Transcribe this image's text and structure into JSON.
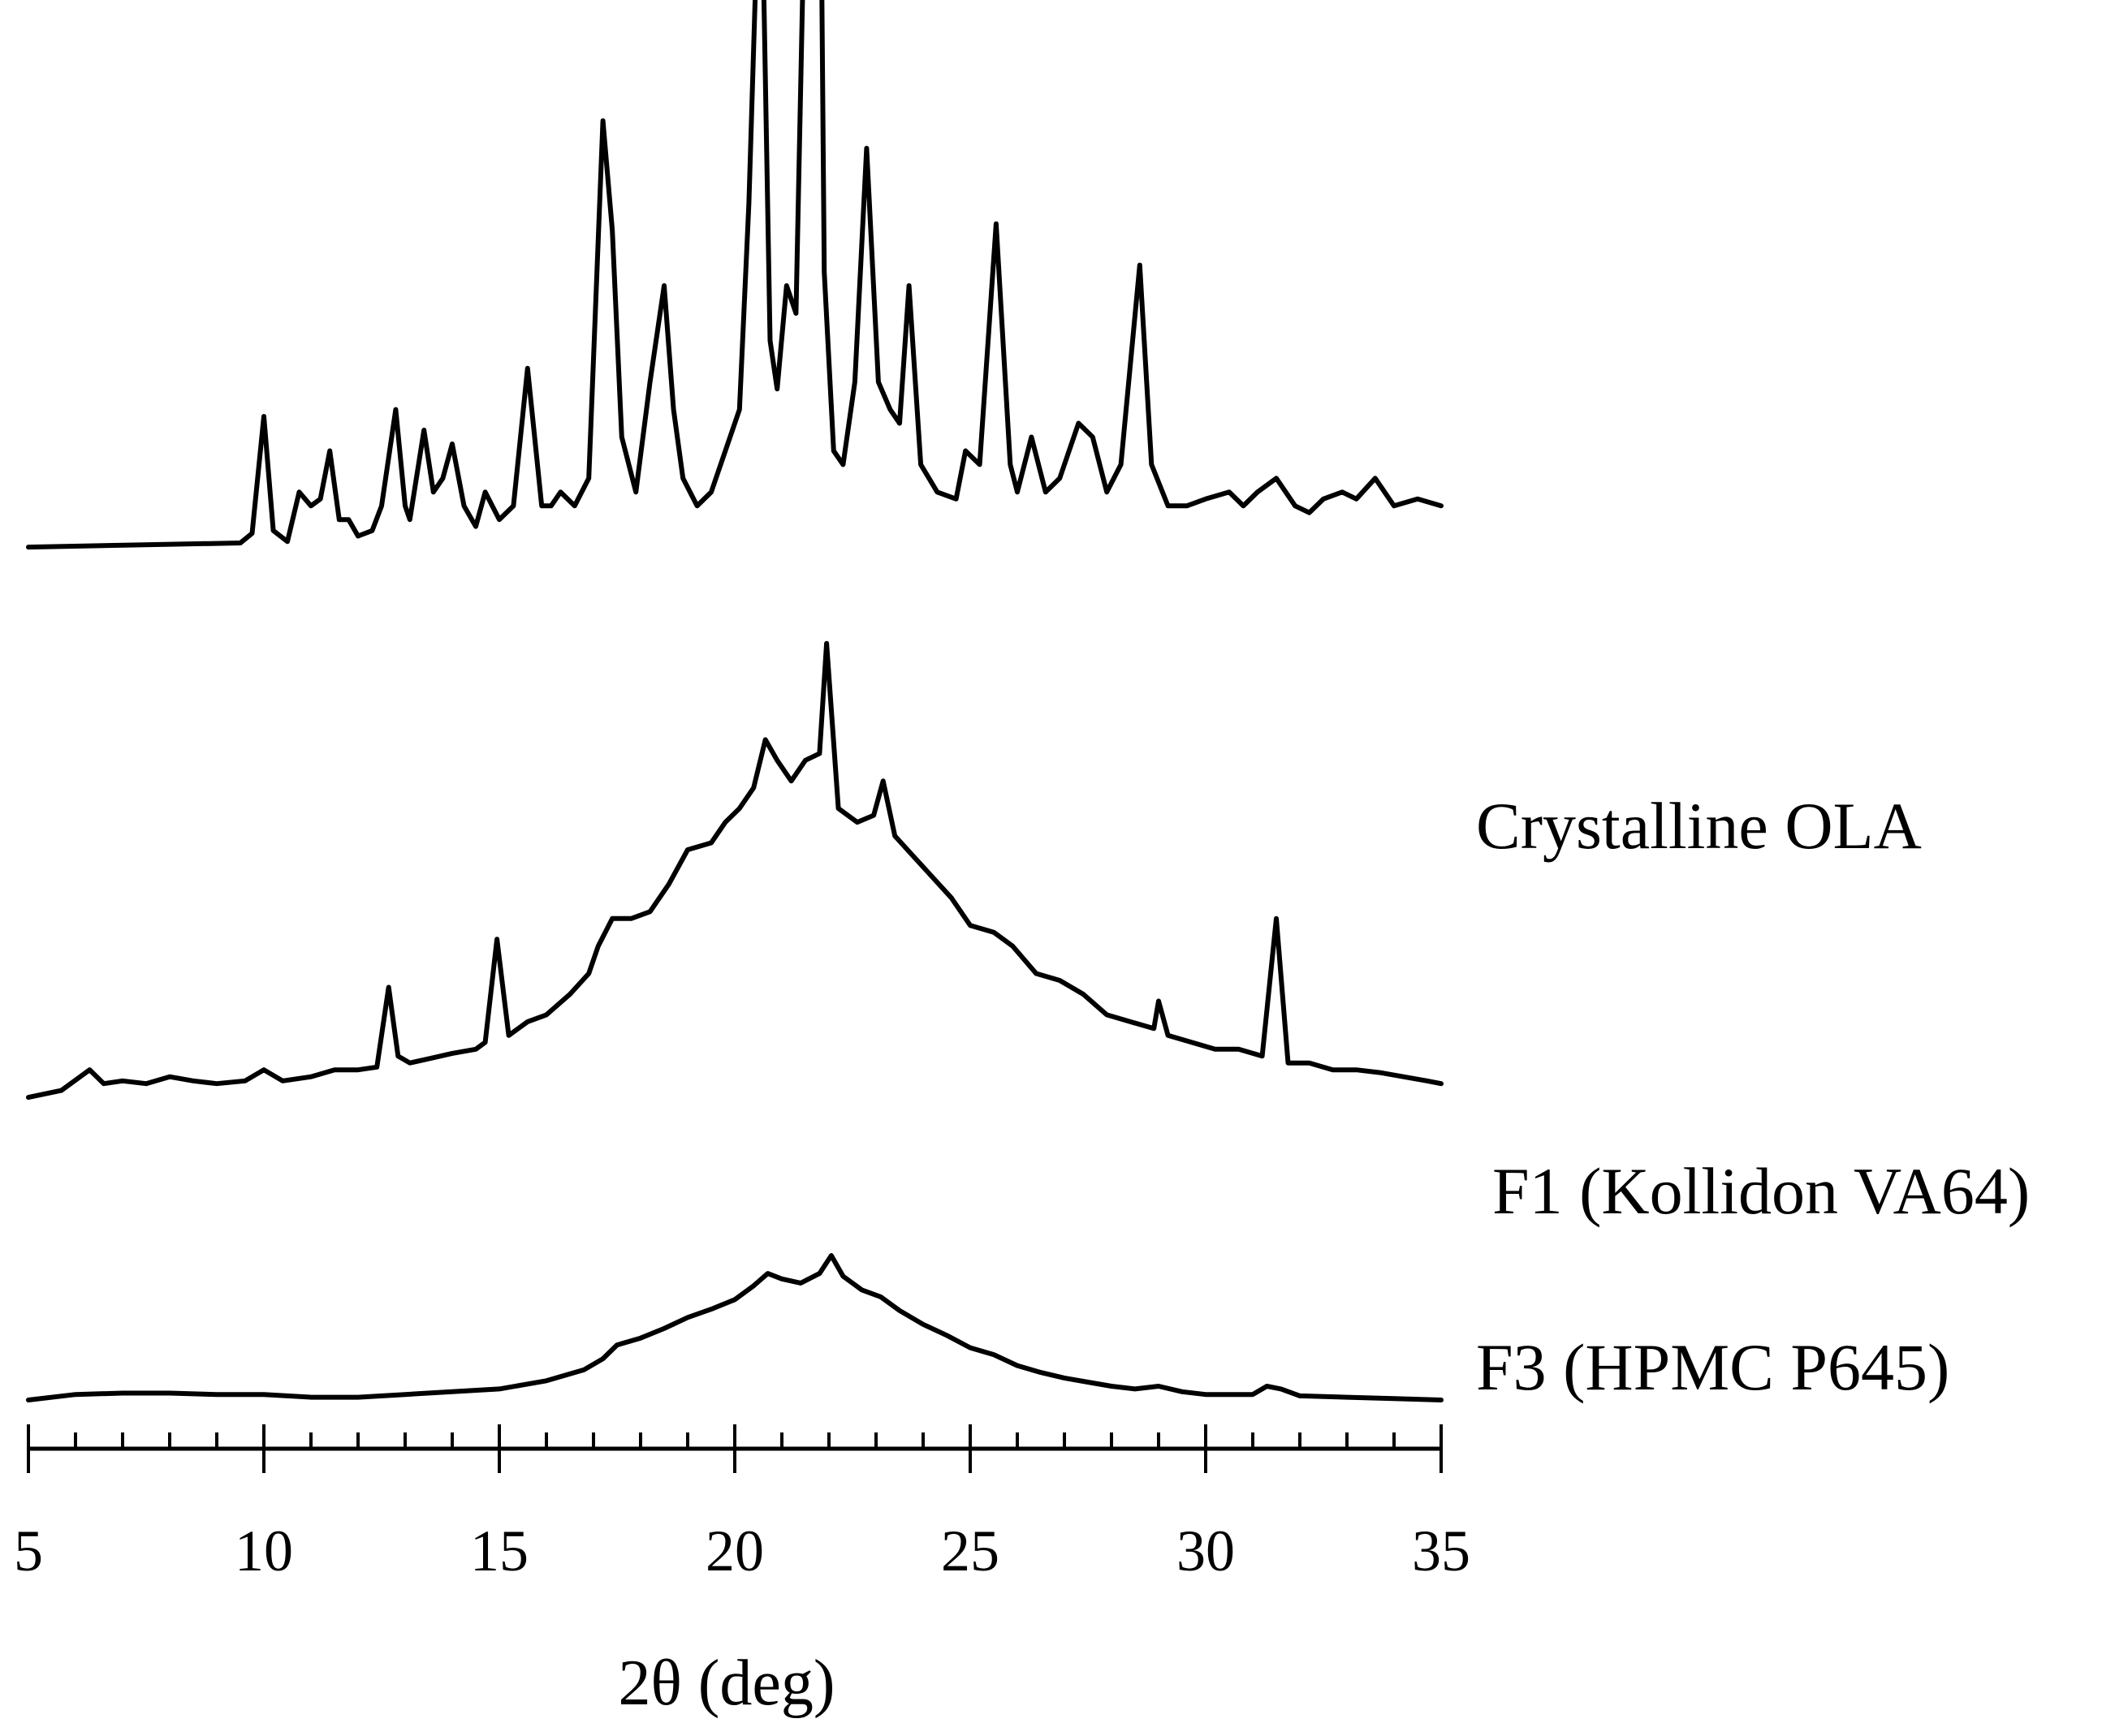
{
  "chart_data": {
    "type": "line",
    "xlabel": "2θ (deg)",
    "ylabel": "",
    "xlim": [
      5,
      35
    ],
    "x_major_ticks": [
      5,
      10,
      15,
      20,
      25,
      30,
      35
    ],
    "x_tick_labels": [
      "5",
      "10",
      "15",
      "20",
      "25",
      "30",
      "35"
    ],
    "x_minor_step": 1,
    "grid": false,
    "y_axis_shown": false,
    "stacked_offset": true,
    "colors": {
      "line": "#000000",
      "background": "#ffffff"
    },
    "series": [
      {
        "name": "Crystalline OLA",
        "offset": 0.62,
        "points": [
          [
            5,
            0
          ],
          [
            9.5,
            0.003
          ],
          [
            9.75,
            0.01
          ],
          [
            10.0,
            0.095
          ],
          [
            10.2,
            0.012
          ],
          [
            10.5,
            0.004
          ],
          [
            10.75,
            0.04
          ],
          [
            11.0,
            0.03
          ],
          [
            11.2,
            0.035
          ],
          [
            11.4,
            0.07
          ],
          [
            11.6,
            0.02
          ],
          [
            11.8,
            0.02
          ],
          [
            12.0,
            0.008
          ],
          [
            12.3,
            0.012
          ],
          [
            12.5,
            0.03
          ],
          [
            12.8,
            0.1
          ],
          [
            13.0,
            0.03
          ],
          [
            13.1,
            0.02
          ],
          [
            13.4,
            0.085
          ],
          [
            13.6,
            0.04
          ],
          [
            13.8,
            0.05
          ],
          [
            14.0,
            0.075
          ],
          [
            14.25,
            0.03
          ],
          [
            14.5,
            0.015
          ],
          [
            14.7,
            0.04
          ],
          [
            15.0,
            0.02
          ],
          [
            15.3,
            0.03
          ],
          [
            15.6,
            0.13
          ],
          [
            15.9,
            0.03
          ],
          [
            16.1,
            0.03
          ],
          [
            16.3,
            0.04
          ],
          [
            16.6,
            0.03
          ],
          [
            16.9,
            0.05
          ],
          [
            17.2,
            0.31
          ],
          [
            17.4,
            0.23
          ],
          [
            17.6,
            0.08
          ],
          [
            17.9,
            0.04
          ],
          [
            18.2,
            0.12
          ],
          [
            18.5,
            0.19
          ],
          [
            18.7,
            0.1
          ],
          [
            18.9,
            0.05
          ],
          [
            19.2,
            0.03
          ],
          [
            19.5,
            0.04
          ],
          [
            19.8,
            0.07
          ],
          [
            20.1,
            0.1
          ],
          [
            20.3,
            0.25
          ],
          [
            20.55,
            0.53
          ],
          [
            20.75,
            0.15
          ],
          [
            20.9,
            0.115
          ],
          [
            21.1,
            0.19
          ],
          [
            21.3,
            0.17
          ],
          [
            21.5,
            0.5
          ],
          [
            21.7,
            1.0
          ],
          [
            21.9,
            0.2
          ],
          [
            22.1,
            0.07
          ],
          [
            22.3,
            0.06
          ],
          [
            22.55,
            0.12
          ],
          [
            22.8,
            0.29
          ],
          [
            23.05,
            0.12
          ],
          [
            23.3,
            0.1
          ],
          [
            23.5,
            0.09
          ],
          [
            23.7,
            0.19
          ],
          [
            23.95,
            0.06
          ],
          [
            24.3,
            0.04
          ],
          [
            24.7,
            0.035
          ],
          [
            24.9,
            0.07
          ],
          [
            25.2,
            0.06
          ],
          [
            25.55,
            0.235
          ],
          [
            25.85,
            0.06
          ],
          [
            26.0,
            0.04
          ],
          [
            26.3,
            0.08
          ],
          [
            26.6,
            0.04
          ],
          [
            26.9,
            0.05
          ],
          [
            27.3,
            0.09
          ],
          [
            27.6,
            0.08
          ],
          [
            27.9,
            0.04
          ],
          [
            28.2,
            0.06
          ],
          [
            28.6,
            0.205
          ],
          [
            28.85,
            0.06
          ],
          [
            29.2,
            0.03
          ],
          [
            29.6,
            0.03
          ],
          [
            30.0,
            0.035
          ],
          [
            30.5,
            0.04
          ],
          [
            30.8,
            0.03
          ],
          [
            31.1,
            0.04
          ],
          [
            31.5,
            0.05
          ],
          [
            31.9,
            0.03
          ],
          [
            32.2,
            0.025
          ],
          [
            32.5,
            0.035
          ],
          [
            32.9,
            0.04
          ],
          [
            33.2,
            0.035
          ],
          [
            33.6,
            0.05
          ],
          [
            34.0,
            0.03
          ],
          [
            34.5,
            0.035
          ],
          [
            35,
            0.03
          ]
        ]
      },
      {
        "name": "F1 (Kollidon VA64)",
        "offset": 0.22,
        "points": [
          [
            5,
            0
          ],
          [
            5.7,
            0.005
          ],
          [
            6.3,
            0.02
          ],
          [
            6.6,
            0.01
          ],
          [
            7.0,
            0.012
          ],
          [
            7.5,
            0.01
          ],
          [
            8.0,
            0.015
          ],
          [
            8.5,
            0.012
          ],
          [
            9.0,
            0.01
          ],
          [
            9.6,
            0.012
          ],
          [
            10.0,
            0.02
          ],
          [
            10.4,
            0.012
          ],
          [
            11.0,
            0.015
          ],
          [
            11.5,
            0.02
          ],
          [
            12.0,
            0.02
          ],
          [
            12.4,
            0.022
          ],
          [
            12.65,
            0.08
          ],
          [
            12.85,
            0.03
          ],
          [
            13.1,
            0.025
          ],
          [
            13.5,
            0.028
          ],
          [
            14.0,
            0.032
          ],
          [
            14.5,
            0.035
          ],
          [
            14.7,
            0.04
          ],
          [
            14.95,
            0.115
          ],
          [
            15.2,
            0.045
          ],
          [
            15.6,
            0.055
          ],
          [
            16.0,
            0.06
          ],
          [
            16.5,
            0.075
          ],
          [
            16.9,
            0.09
          ],
          [
            17.1,
            0.11
          ],
          [
            17.4,
            0.13
          ],
          [
            17.8,
            0.13
          ],
          [
            18.2,
            0.135
          ],
          [
            18.6,
            0.155
          ],
          [
            19.0,
            0.18
          ],
          [
            19.5,
            0.185
          ],
          [
            19.8,
            0.2
          ],
          [
            20.1,
            0.21
          ],
          [
            20.4,
            0.225
          ],
          [
            20.65,
            0.26
          ],
          [
            20.9,
            0.245
          ],
          [
            21.2,
            0.23
          ],
          [
            21.5,
            0.245
          ],
          [
            21.8,
            0.25
          ],
          [
            21.95,
            0.33
          ],
          [
            22.2,
            0.21
          ],
          [
            22.6,
            0.2
          ],
          [
            22.95,
            0.205
          ],
          [
            23.15,
            0.23
          ],
          [
            23.4,
            0.19
          ],
          [
            23.8,
            0.175
          ],
          [
            24.2,
            0.16
          ],
          [
            24.6,
            0.145
          ],
          [
            25.0,
            0.125
          ],
          [
            25.5,
            0.12
          ],
          [
            25.9,
            0.11
          ],
          [
            26.4,
            0.09
          ],
          [
            26.9,
            0.085
          ],
          [
            27.4,
            0.075
          ],
          [
            27.9,
            0.06
          ],
          [
            28.4,
            0.055
          ],
          [
            28.9,
            0.05
          ],
          [
            29.0,
            0.07
          ],
          [
            29.2,
            0.045
          ],
          [
            29.7,
            0.04
          ],
          [
            30.2,
            0.035
          ],
          [
            30.7,
            0.035
          ],
          [
            31.2,
            0.03
          ],
          [
            31.5,
            0.13
          ],
          [
            31.75,
            0.025
          ],
          [
            32.2,
            0.025
          ],
          [
            32.7,
            0.02
          ],
          [
            33.2,
            0.02
          ],
          [
            33.7,
            0.018
          ],
          [
            34.2,
            0.015
          ],
          [
            34.7,
            0.012
          ],
          [
            35,
            0.01
          ]
        ]
      },
      {
        "name": "F3 (HPMC P645)",
        "offset": 0.0,
        "points": [
          [
            5,
            0
          ],
          [
            6.0,
            0.004
          ],
          [
            7.0,
            0.005
          ],
          [
            8.0,
            0.005
          ],
          [
            9.0,
            0.004
          ],
          [
            10.0,
            0.004
          ],
          [
            11.0,
            0.002
          ],
          [
            12.0,
            0.002
          ],
          [
            13.0,
            0.004
          ],
          [
            14.0,
            0.006
          ],
          [
            15.0,
            0.008
          ],
          [
            16.0,
            0.014
          ],
          [
            16.8,
            0.022
          ],
          [
            17.2,
            0.03
          ],
          [
            17.5,
            0.04
          ],
          [
            18.0,
            0.045
          ],
          [
            18.5,
            0.052
          ],
          [
            19.0,
            0.06
          ],
          [
            19.5,
            0.066
          ],
          [
            20.0,
            0.073
          ],
          [
            20.4,
            0.083
          ],
          [
            20.7,
            0.092
          ],
          [
            21.0,
            0.088
          ],
          [
            21.4,
            0.085
          ],
          [
            21.8,
            0.092
          ],
          [
            22.05,
            0.105
          ],
          [
            22.3,
            0.09
          ],
          [
            22.7,
            0.08
          ],
          [
            23.1,
            0.075
          ],
          [
            23.5,
            0.065
          ],
          [
            24.0,
            0.055
          ],
          [
            24.5,
            0.047
          ],
          [
            25.0,
            0.038
          ],
          [
            25.5,
            0.033
          ],
          [
            26.0,
            0.025
          ],
          [
            26.5,
            0.02
          ],
          [
            27.0,
            0.016
          ],
          [
            27.5,
            0.013
          ],
          [
            28.0,
            0.01
          ],
          [
            28.5,
            0.008
          ],
          [
            29.0,
            0.01
          ],
          [
            29.5,
            0.006
          ],
          [
            30.0,
            0.004
          ],
          [
            31.0,
            0.004
          ],
          [
            31.3,
            0.01
          ],
          [
            31.6,
            0.008
          ],
          [
            32.0,
            0.003
          ],
          [
            33.0,
            0.002
          ],
          [
            34.0,
            0.001
          ],
          [
            35,
            0.0
          ]
        ]
      }
    ]
  }
}
